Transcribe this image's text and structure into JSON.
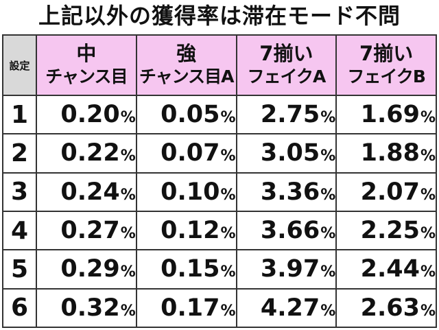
{
  "title": "上記以外の獲得率は滞在モード不問",
  "table": {
    "setting_header": "設定",
    "columns": [
      {
        "line1": "中",
        "line2": "チャンス目"
      },
      {
        "line1": "強",
        "line2": "チャンス目A"
      },
      {
        "line1": "7揃い",
        "line2": "フェイクA"
      },
      {
        "line1": "7揃い",
        "line2": "フェイクB"
      }
    ],
    "unit": "%",
    "rows": [
      {
        "setting": "1",
        "values": [
          "0.20",
          "0.05",
          "2.75",
          "1.69"
        ]
      },
      {
        "setting": "2",
        "values": [
          "0.22",
          "0.07",
          "3.05",
          "1.88"
        ]
      },
      {
        "setting": "3",
        "values": [
          "0.24",
          "0.10",
          "3.36",
          "2.07"
        ]
      },
      {
        "setting": "4",
        "values": [
          "0.27",
          "0.12",
          "3.66",
          "2.25"
        ]
      },
      {
        "setting": "5",
        "values": [
          "0.29",
          "0.15",
          "3.97",
          "2.44"
        ]
      },
      {
        "setting": "6",
        "values": [
          "0.32",
          "0.17",
          "4.27",
          "2.63"
        ]
      }
    ]
  },
  "colors": {
    "header_background": "#f6c6f0",
    "setting_header_background": "#d9d9d9",
    "border": "#333333",
    "text": "#111111"
  }
}
